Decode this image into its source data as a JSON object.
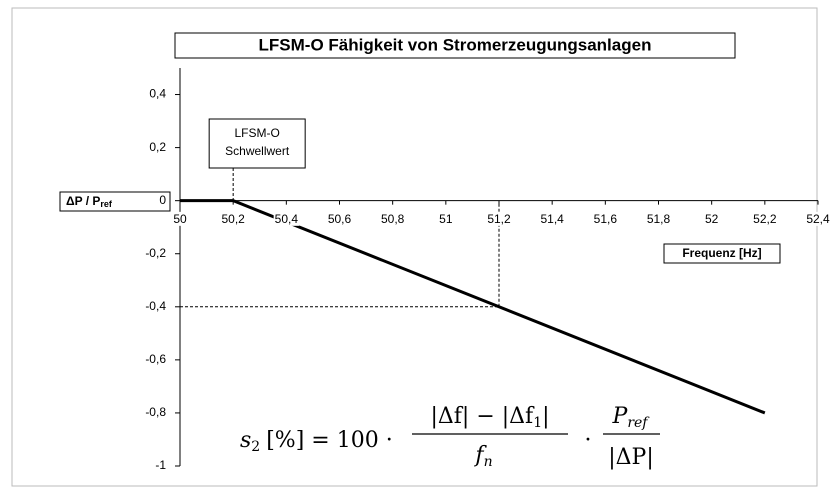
{
  "chart_data": {
    "type": "line",
    "title": "LFSM-O Fähigkeit von Stromerzeugungsanlagen",
    "ylabel": "ΔP / P",
    "ylabel_sub": "ref",
    "xlabel": "Frequenz [Hz]",
    "x": [
      50,
      50.2,
      52.2
    ],
    "series": [
      {
        "name": "LFSM-O",
        "color": "#000000",
        "values": [
          0,
          0,
          -0.8
        ]
      }
    ],
    "xlim": [
      50,
      52.4
    ],
    "ylim": [
      -1,
      0.5
    ],
    "xticks": [
      50,
      {
        "value": 50.2,
        "label": "50,2"
      },
      {
        "value": 50.4,
        "label": "50,4"
      },
      {
        "value": 50.6,
        "label": "50,6"
      },
      {
        "value": 50.8,
        "label": "50,8"
      },
      51,
      {
        "value": 51.2,
        "label": "51,2"
      },
      {
        "value": 51.4,
        "label": "51,4"
      },
      {
        "value": 51.6,
        "label": "51,6"
      },
      {
        "value": 51.8,
        "label": "51,8"
      },
      52,
      {
        "value": 52.2,
        "label": "52,2"
      },
      {
        "value": 52.4,
        "label": "52,4"
      }
    ],
    "yticks": [
      -1,
      {
        "value": -0.8,
        "label": "-0,8"
      },
      {
        "value": -0.6,
        "label": "-0,6"
      },
      {
        "value": -0.4,
        "label": "-0,4"
      },
      {
        "value": -0.2,
        "label": "-0,2"
      },
      0,
      {
        "value": 0.2,
        "label": "0,2"
      },
      {
        "value": 0.4,
        "label": "0,4"
      }
    ],
    "annotations": [
      {
        "lines": [
          "LFSM-O",
          "Schwellwert"
        ],
        "x": 50.2
      }
    ],
    "reference_point": {
      "x": 51.2,
      "y": -0.4
    },
    "formula": {
      "lhs": "s",
      "lhs_sub": "2",
      "mid": "[%] = 100 ·",
      "num": "|Δf| − |Δf",
      "num_sub": "1",
      "num_end": "|",
      "den": "f",
      "den_sub": "n",
      "dot": "·",
      "num2": "P",
      "num2_sub": "ref",
      "den2": "|ΔP|"
    }
  }
}
